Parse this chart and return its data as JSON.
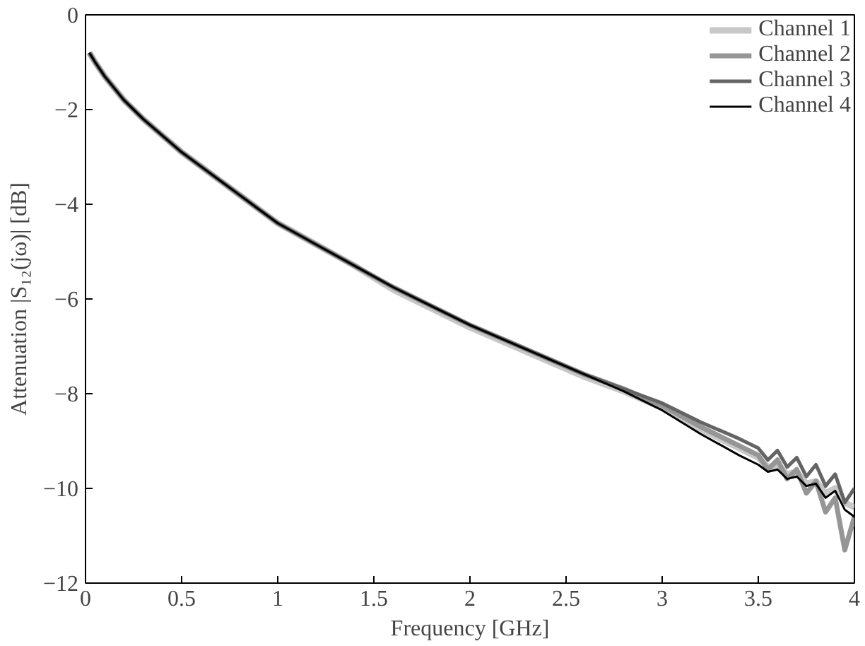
{
  "chart_data": {
    "type": "line",
    "xlabel": "Frequency [GHz]",
    "ylabel": "Attenuation |S₁₂(jω)| [dB]",
    "x": [
      0.02,
      0.05,
      0.1,
      0.15,
      0.2,
      0.3,
      0.4,
      0.5,
      0.6,
      0.7,
      0.8,
      0.9,
      1.0,
      1.2,
      1.4,
      1.6,
      1.8,
      2.0,
      2.2,
      2.4,
      2.6,
      2.8,
      3.0,
      3.2,
      3.4,
      3.5,
      3.55,
      3.6,
      3.65,
      3.7,
      3.75,
      3.8,
      3.85,
      3.9,
      3.95,
      4.0
    ],
    "series": [
      {
        "name": "Channel 1",
        "color": "#c8c8c8",
        "values": [
          -0.8,
          -1.0,
          -1.3,
          -1.55,
          -1.8,
          -2.2,
          -2.55,
          -2.9,
          -3.2,
          -3.5,
          -3.8,
          -4.1,
          -4.4,
          -4.85,
          -5.3,
          -5.8,
          -6.2,
          -6.6,
          -6.95,
          -7.3,
          -7.65,
          -7.95,
          -8.3,
          -8.75,
          -9.15,
          -9.35,
          -9.55,
          -9.5,
          -9.7,
          -9.65,
          -9.9,
          -9.85,
          -10.1,
          -10.0,
          -10.3,
          -10.4
        ]
      },
      {
        "name": "Channel 2",
        "color": "#969696",
        "values": [
          -0.8,
          -1.0,
          -1.3,
          -1.55,
          -1.8,
          -2.2,
          -2.55,
          -2.9,
          -3.2,
          -3.5,
          -3.8,
          -4.1,
          -4.4,
          -4.85,
          -5.3,
          -5.75,
          -6.15,
          -6.55,
          -6.9,
          -7.25,
          -7.6,
          -7.9,
          -8.25,
          -8.7,
          -9.1,
          -9.3,
          -9.6,
          -9.4,
          -9.8,
          -9.6,
          -10.1,
          -9.85,
          -10.5,
          -10.2,
          -11.3,
          -10.6
        ]
      },
      {
        "name": "Channel 3",
        "color": "#646464",
        "values": [
          -0.8,
          -1.0,
          -1.3,
          -1.55,
          -1.8,
          -2.2,
          -2.55,
          -2.9,
          -3.2,
          -3.5,
          -3.8,
          -4.1,
          -4.4,
          -4.85,
          -5.3,
          -5.75,
          -6.15,
          -6.55,
          -6.9,
          -7.25,
          -7.6,
          -7.9,
          -8.2,
          -8.6,
          -8.95,
          -9.15,
          -9.4,
          -9.2,
          -9.55,
          -9.35,
          -9.75,
          -9.5,
          -9.95,
          -9.7,
          -10.3,
          -10.0
        ]
      },
      {
        "name": "Channel 4",
        "color": "#000000",
        "values": [
          -0.8,
          -1.0,
          -1.3,
          -1.55,
          -1.8,
          -2.2,
          -2.55,
          -2.9,
          -3.2,
          -3.5,
          -3.8,
          -4.1,
          -4.4,
          -4.85,
          -5.3,
          -5.75,
          -6.15,
          -6.55,
          -6.9,
          -7.25,
          -7.6,
          -7.95,
          -8.35,
          -8.85,
          -9.3,
          -9.5,
          -9.65,
          -9.6,
          -9.8,
          -9.75,
          -9.95,
          -9.9,
          -10.2,
          -10.05,
          -10.45,
          -10.6
        ]
      }
    ],
    "xlim": [
      0,
      4
    ],
    "ylim": [
      -12,
      0
    ],
    "xticks": [
      0,
      0.5,
      1,
      1.5,
      2,
      2.5,
      3,
      3.5,
      4
    ],
    "yticks": [
      -12,
      -10,
      -8,
      -6,
      -4,
      -2,
      0
    ],
    "grid": false,
    "legend": "top right",
    "marker": "none",
    "line_style": "solid"
  }
}
